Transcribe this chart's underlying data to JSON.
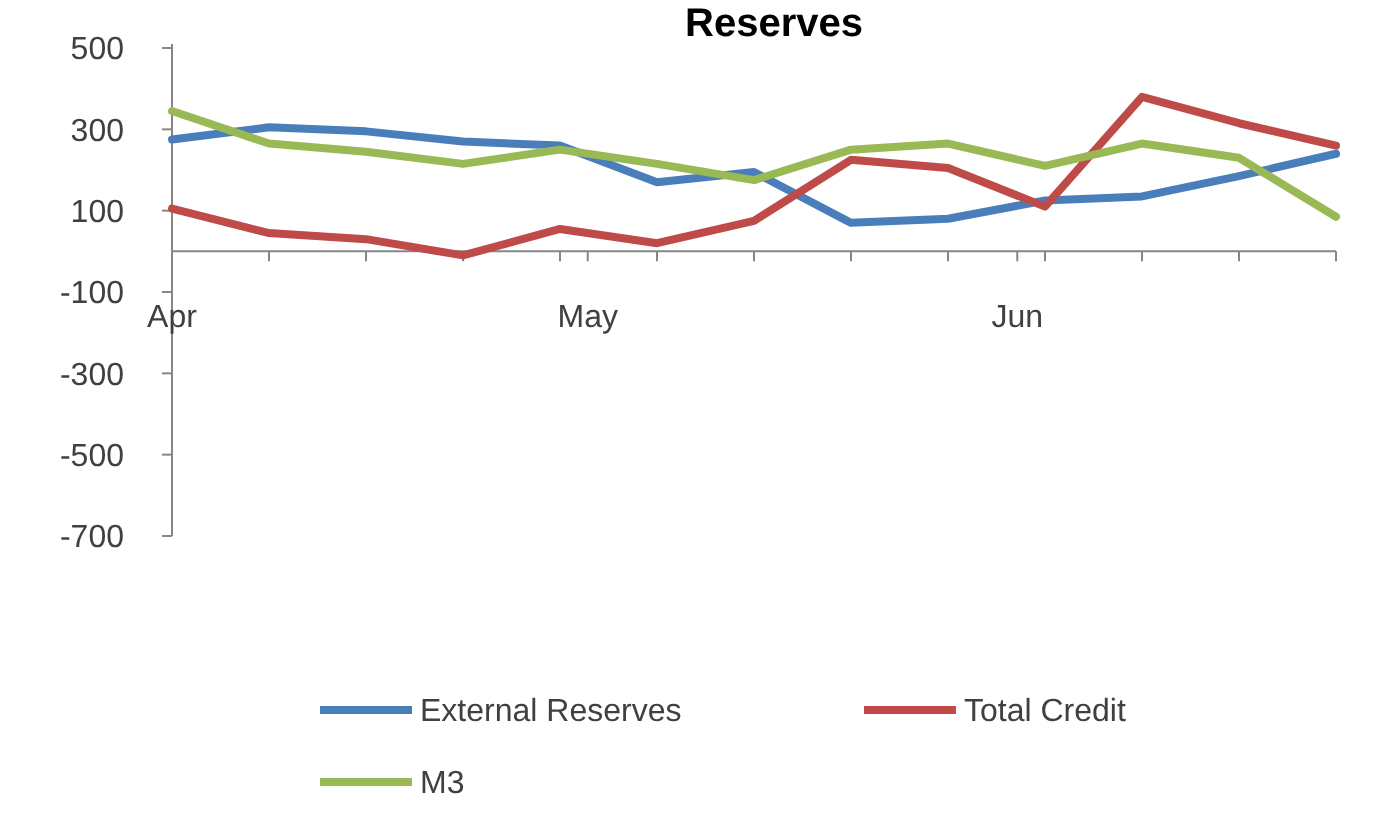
{
  "chart_data": {
    "type": "line",
    "title": "Reserves",
    "x": [
      "--04-01",
      "--04-08",
      "--04-15",
      "--04-22",
      "--04-29",
      "--05-06",
      "--05-13",
      "--05-20",
      "--05-27",
      "--06-03",
      "--06-10",
      "--06-17",
      "--06-24"
    ],
    "series": [
      {
        "name": "External Reserves",
        "color": "#4a7ebb",
        "values": [
          275,
          305,
          295,
          270,
          260,
          170,
          195,
          70,
          80,
          125,
          135,
          185,
          240
        ]
      },
      {
        "name": "Total Credit",
        "color": "#be4b48",
        "values": [
          105,
          45,
          30,
          -10,
          55,
          20,
          75,
          225,
          205,
          110,
          380,
          315,
          260
        ]
      },
      {
        "name": "M3",
        "color": "#98b954",
        "values": [
          345,
          265,
          245,
          215,
          250,
          215,
          175,
          250,
          265,
          210,
          265,
          230,
          85
        ]
      }
    ],
    "xlim": [
      "--04-01",
      "--06-24"
    ],
    "xticks": [
      {
        "value": "--04-01",
        "label": "Apr"
      },
      {
        "value": "--05-01",
        "label": "May"
      },
      {
        "value": "--06-01",
        "label": "Jun"
      },
      {
        "value": "--04-08",
        "label": null
      },
      {
        "value": "--04-15",
        "label": null
      },
      {
        "value": "--04-22",
        "label": null
      },
      {
        "value": "--04-29",
        "label": null
      },
      {
        "value": "--05-06",
        "label": null
      },
      {
        "value": "--05-13",
        "label": null
      },
      {
        "value": "--05-20",
        "label": null
      },
      {
        "value": "--05-27",
        "label": null
      },
      {
        "value": "--06-03",
        "label": null
      },
      {
        "value": "--06-10",
        "label": null
      },
      {
        "value": "--06-17",
        "label": null
      },
      {
        "value": "--06-24",
        "label": null
      }
    ],
    "ylim": [
      -700,
      500
    ],
    "yticks": [
      -700,
      -500,
      -300,
      -100,
      100,
      300,
      500
    ],
    "legend": "bottom",
    "marker": "none",
    "line_style": "solid"
  }
}
